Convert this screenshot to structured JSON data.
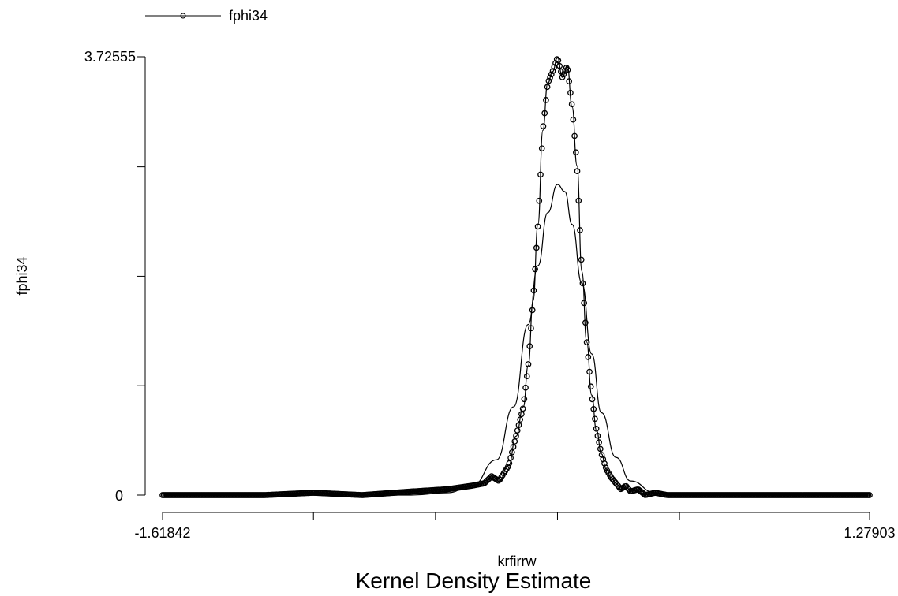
{
  "chart_data": {
    "type": "line",
    "title": "Kernel Density Estimate",
    "xlabel": "krfirrw",
    "ylabel": "fphi34",
    "xlim": [
      -1.61842,
      1.27903
    ],
    "ylim": [
      0,
      3.72555
    ],
    "x_tick_labels": [
      "-1.61842",
      "1.27903"
    ],
    "y_tick_labels": [
      "0",
      "3.72555"
    ],
    "x_minor_ticks": [
      -1.0,
      -0.5,
      0.0,
      0.5
    ],
    "y_minor_ticks": [
      0.93,
      1.86,
      2.79
    ],
    "grid": false,
    "legend": {
      "position": "top-left",
      "entries": [
        "fphi34"
      ]
    },
    "series": [
      {
        "name": "fphi34",
        "style": "line-with-circle-markers",
        "x": [
          -1.61842,
          -1.4,
          -1.2,
          -1.0,
          -0.8,
          -0.6,
          -0.45,
          -0.35,
          -0.3,
          -0.27,
          -0.24,
          -0.2,
          -0.17,
          -0.14,
          -0.12,
          -0.1,
          -0.08,
          -0.06,
          -0.04,
          -0.02,
          0.0,
          0.02,
          0.04,
          0.06,
          0.08,
          0.1,
          0.12,
          0.14,
          0.16,
          0.18,
          0.2,
          0.22,
          0.24,
          0.26,
          0.28,
          0.3,
          0.33,
          0.36,
          0.4,
          0.45,
          0.5,
          0.6,
          0.7,
          0.8,
          1.0,
          1.1,
          1.2,
          1.27903
        ],
        "y": [
          0.0,
          0.0,
          0.0,
          0.02,
          0.0,
          0.03,
          0.05,
          0.08,
          0.1,
          0.16,
          0.12,
          0.25,
          0.5,
          0.75,
          1.1,
          1.65,
          2.3,
          3.1,
          3.5,
          3.6,
          3.72,
          3.55,
          3.65,
          3.3,
          2.8,
          1.9,
          1.3,
          0.85,
          0.55,
          0.35,
          0.22,
          0.15,
          0.1,
          0.05,
          0.08,
          0.03,
          0.05,
          0.0,
          0.02,
          0.0,
          0.0,
          0.0,
          0.0,
          0.0,
          0.0,
          0.0,
          0.0,
          0.0
        ]
      },
      {
        "name": "",
        "style": "line",
        "x": [
          -1.61842,
          -1.2,
          -0.8,
          -0.6,
          -0.45,
          -0.35,
          -0.25,
          -0.18,
          -0.12,
          -0.08,
          -0.04,
          0.0,
          0.03,
          0.06,
          0.1,
          0.14,
          0.18,
          0.24,
          0.3,
          0.4,
          0.55,
          0.75,
          1.0,
          1.27903
        ],
        "y": [
          0.0,
          0.0,
          0.0,
          0.0,
          0.02,
          0.08,
          0.3,
          0.75,
          1.45,
          1.95,
          2.4,
          2.64,
          2.58,
          2.3,
          1.8,
          1.2,
          0.7,
          0.32,
          0.12,
          0.02,
          0.0,
          0.0,
          0.0,
          0.0
        ]
      }
    ]
  }
}
